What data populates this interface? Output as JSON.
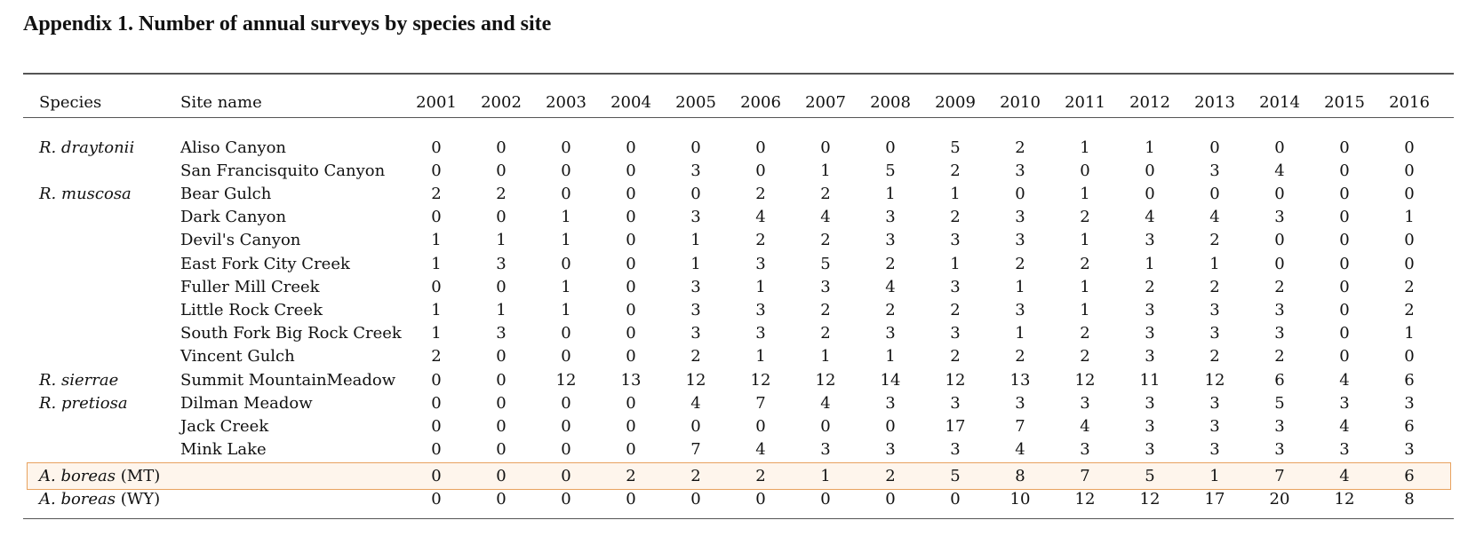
{
  "title": "Appendix 1.  Number of annual surveys by species and site",
  "table": {
    "headers": {
      "species": "Species",
      "site": "Site name",
      "years": [
        "2001",
        "2002",
        "2003",
        "2004",
        "2005",
        "2006",
        "2007",
        "2008",
        "2009",
        "2010",
        "2011",
        "2012",
        "2013",
        "2014",
        "2015",
        "2016"
      ]
    },
    "rows": [
      {
        "species": "R. draytonii",
        "species_suffix": "",
        "site": "Aliso Canyon",
        "values": [
          "0",
          "0",
          "0",
          "0",
          "0",
          "0",
          "0",
          "0",
          "5",
          "2",
          "1",
          "1",
          "0",
          "0",
          "0",
          "0"
        ]
      },
      {
        "species": "",
        "species_suffix": "",
        "site": "San Francisquito Canyon",
        "values": [
          "0",
          "0",
          "0",
          "0",
          "3",
          "0",
          "1",
          "5",
          "2",
          "3",
          "0",
          "0",
          "3",
          "4",
          "0",
          "0"
        ]
      },
      {
        "species": "R. muscosa",
        "species_suffix": "",
        "site": "Bear Gulch",
        "values": [
          "2",
          "2",
          "0",
          "0",
          "0",
          "2",
          "2",
          "1",
          "1",
          "0",
          "1",
          "0",
          "0",
          "0",
          "0",
          "0"
        ]
      },
      {
        "species": "",
        "species_suffix": "",
        "site": "Dark Canyon",
        "values": [
          "0",
          "0",
          "1",
          "0",
          "3",
          "4",
          "4",
          "3",
          "2",
          "3",
          "2",
          "4",
          "4",
          "3",
          "0",
          "1"
        ]
      },
      {
        "species": "",
        "species_suffix": "",
        "site": "Devil's Canyon",
        "values": [
          "1",
          "1",
          "1",
          "0",
          "1",
          "2",
          "2",
          "3",
          "3",
          "3",
          "1",
          "3",
          "2",
          "0",
          "0",
          "0"
        ]
      },
      {
        "species": "",
        "species_suffix": "",
        "site": "East Fork City Creek",
        "values": [
          "1",
          "3",
          "0",
          "0",
          "1",
          "3",
          "5",
          "2",
          "1",
          "2",
          "2",
          "1",
          "1",
          "0",
          "0",
          "0"
        ]
      },
      {
        "species": "",
        "species_suffix": "",
        "site": "Fuller Mill Creek",
        "values": [
          "0",
          "0",
          "1",
          "0",
          "3",
          "1",
          "3",
          "4",
          "3",
          "1",
          "1",
          "2",
          "2",
          "2",
          "0",
          "2"
        ]
      },
      {
        "species": "",
        "species_suffix": "",
        "site": "Little Rock Creek",
        "values": [
          "1",
          "1",
          "1",
          "0",
          "3",
          "3",
          "2",
          "2",
          "2",
          "3",
          "1",
          "3",
          "3",
          "3",
          "0",
          "2"
        ]
      },
      {
        "species": "",
        "species_suffix": "",
        "site": "South Fork Big Rock Creek",
        "values": [
          "1",
          "3",
          "0",
          "0",
          "3",
          "3",
          "2",
          "3",
          "3",
          "1",
          "2",
          "3",
          "3",
          "3",
          "0",
          "1"
        ]
      },
      {
        "species": "",
        "species_suffix": "",
        "site": "Vincent Gulch",
        "values": [
          "2",
          "0",
          "0",
          "0",
          "2",
          "1",
          "1",
          "1",
          "2",
          "2",
          "2",
          "3",
          "2",
          "2",
          "0",
          "0"
        ]
      },
      {
        "species": "R. sierrae",
        "species_suffix": "",
        "site": "Summit MountainMeadow",
        "values": [
          "0",
          "0",
          "12",
          "13",
          "12",
          "12",
          "12",
          "14",
          "12",
          "13",
          "12",
          "11",
          "12",
          "6",
          "4",
          "6"
        ]
      },
      {
        "species": "R. pretiosa",
        "species_suffix": "",
        "site": "Dilman Meadow",
        "values": [
          "0",
          "0",
          "0",
          "0",
          "4",
          "7",
          "4",
          "3",
          "3",
          "3",
          "3",
          "3",
          "3",
          "5",
          "3",
          "3"
        ]
      },
      {
        "species": "",
        "species_suffix": "",
        "site": "Jack Creek",
        "values": [
          "0",
          "0",
          "0",
          "0",
          "0",
          "0",
          "0",
          "0",
          "17",
          "7",
          "4",
          "3",
          "3",
          "3",
          "4",
          "6"
        ]
      },
      {
        "species": "",
        "species_suffix": "",
        "site": "Mink Lake",
        "values": [
          "0",
          "0",
          "0",
          "0",
          "7",
          "4",
          "3",
          "3",
          "3",
          "4",
          "3",
          "3",
          "3",
          "3",
          "3",
          "3"
        ]
      },
      {
        "species": "A. boreas",
        "species_suffix": " (MT)",
        "site": "",
        "values": [
          "0",
          "0",
          "0",
          "2",
          "2",
          "2",
          "1",
          "2",
          "5",
          "8",
          "7",
          "5",
          "1",
          "7",
          "4",
          "6"
        ]
      },
      {
        "species": "A. boreas",
        "species_suffix": " (WY)",
        "site": "",
        "values": [
          "0",
          "0",
          "0",
          "0",
          "0",
          "0",
          "0",
          "0",
          "0",
          "10",
          "12",
          "12",
          "17",
          "20",
          "12",
          "8"
        ]
      }
    ]
  },
  "highlight_color": "#e8a25f"
}
